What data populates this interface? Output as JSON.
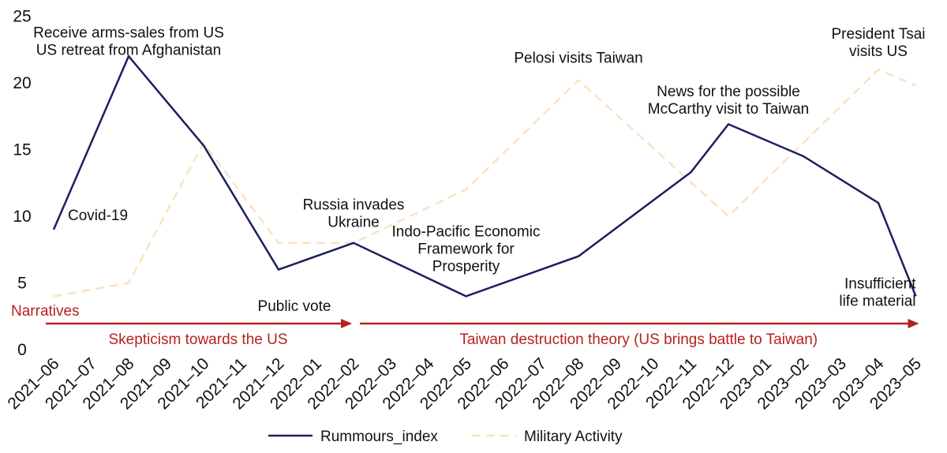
{
  "chart_data": {
    "type": "line",
    "title": "",
    "xlabel": "",
    "ylabel": "",
    "ylim": [
      0,
      25
    ],
    "yticks": [
      0,
      5,
      10,
      15,
      20,
      25
    ],
    "grid": false,
    "legend_position": "bottom",
    "categories": [
      "2021-06",
      "2021-07",
      "2021-08",
      "2021-09",
      "2021-10",
      "2021-11",
      "2021-12",
      "2022-01",
      "2022-02",
      "2022-03",
      "2022-04",
      "2022-05",
      "2022-06",
      "2022-07",
      "2022-08",
      "2022-09",
      "2022-10",
      "2022-11",
      "2022-12",
      "2023-01",
      "2023-02",
      "2023-03",
      "2023-04",
      "2023-05"
    ],
    "x_tick_labels": [
      "2021–06",
      "2021–07",
      "2021–08",
      "2021–09",
      "2021–10",
      "2021–11",
      "2021–12",
      "2022–01",
      "2022–02",
      "2022–03",
      "2022–04",
      "2022–05",
      "2022–06",
      "2022–07",
      "2022–08",
      "2022–09",
      "2022–10",
      "2022–11",
      "2022–12",
      "2023–01",
      "2023–02",
      "2023–03",
      "2023–04",
      "2023–05"
    ],
    "x_axis_note": "The chart plots points at every other month (category index 0,2,4,...,22) plus the final month.",
    "series": [
      {
        "name": "Rummours_index",
        "color": "#1b1f5e",
        "style": "solid",
        "points": [
          {
            "x": "2021-06",
            "y": 9
          },
          {
            "x": "2021-08",
            "y": 22
          },
          {
            "x": "2021-10",
            "y": 15.3
          },
          {
            "x": "2021-12",
            "y": 6
          },
          {
            "x": "2022-02",
            "y": 8
          },
          {
            "x": "2022-05",
            "y": 4
          },
          {
            "x": "2022-08",
            "y": 7
          },
          {
            "x": "2022-11",
            "y": 13.3
          },
          {
            "x": "2022-12",
            "y": 16.9
          },
          {
            "x": "2023-02",
            "y": 14.5
          },
          {
            "x": "2023-04",
            "y": 11
          },
          {
            "x": "2023-05",
            "y": 4
          }
        ]
      },
      {
        "name": "Military Activity",
        "color": "#fbe2c3",
        "style": "dashed",
        "points": [
          {
            "x": "2021-06",
            "y": 4
          },
          {
            "x": "2021-08",
            "y": 5
          },
          {
            "x": "2021-10",
            "y": 15.5
          },
          {
            "x": "2021-12",
            "y": 8
          },
          {
            "x": "2022-02",
            "y": 8
          },
          {
            "x": "2022-05",
            "y": 12
          },
          {
            "x": "2022-08",
            "y": 20.2
          },
          {
            "x": "2022-12",
            "y": 10
          },
          {
            "x": "2023-04",
            "y": 21
          },
          {
            "x": "2023-05",
            "y": 19.8
          }
        ]
      }
    ],
    "annotations": [
      {
        "lines": [
          "Receive arms-sales from US",
          "US retreat from Afghanistan"
        ],
        "x": "2021-08",
        "y": 23.4,
        "anchor": "middle"
      },
      {
        "lines": [
          "Covid-19"
        ],
        "x": "2021-06",
        "y": 9.7,
        "anchor": "start",
        "dx": 18
      },
      {
        "lines": [
          "Russia invades",
          "Ukraine"
        ],
        "x": "2022-02",
        "y": 10.5,
        "anchor": "middle"
      },
      {
        "lines": [
          "Indo-Pacific Economic",
          "Framework for",
          "Prosperity"
        ],
        "x": "2022-05",
        "y": 8.5,
        "anchor": "middle"
      },
      {
        "lines": [
          "Pelosi visits Taiwan"
        ],
        "x": "2022-08",
        "y": 21.5,
        "anchor": "middle"
      },
      {
        "lines": [
          "News for the possible",
          "McCarthy visit to Taiwan"
        ],
        "x": "2022-12",
        "y": 19,
        "anchor": "middle"
      },
      {
        "lines": [
          "President Tsai",
          "visits US"
        ],
        "x": "2023-04",
        "y": 23.3,
        "anchor": "middle"
      },
      {
        "lines": [
          "Insufficient",
          "life material"
        ],
        "x": "2023-05",
        "y": 4.6,
        "anchor": "end"
      },
      {
        "lines": [
          "Public vote"
        ],
        "x": "2021-12",
        "y": 2.9,
        "anchor": "middle",
        "dx": 20
      }
    ],
    "narratives": {
      "label": "Narratives",
      "color": "#b5221e",
      "arrows": [
        {
          "label": "Skepticism towards the US",
          "from": "2021-06",
          "to": "2022-02"
        },
        {
          "label": "Taiwan destruction theory (US brings battle to Taiwan)",
          "from": "2022-02",
          "to": "2023-05"
        }
      ]
    }
  }
}
